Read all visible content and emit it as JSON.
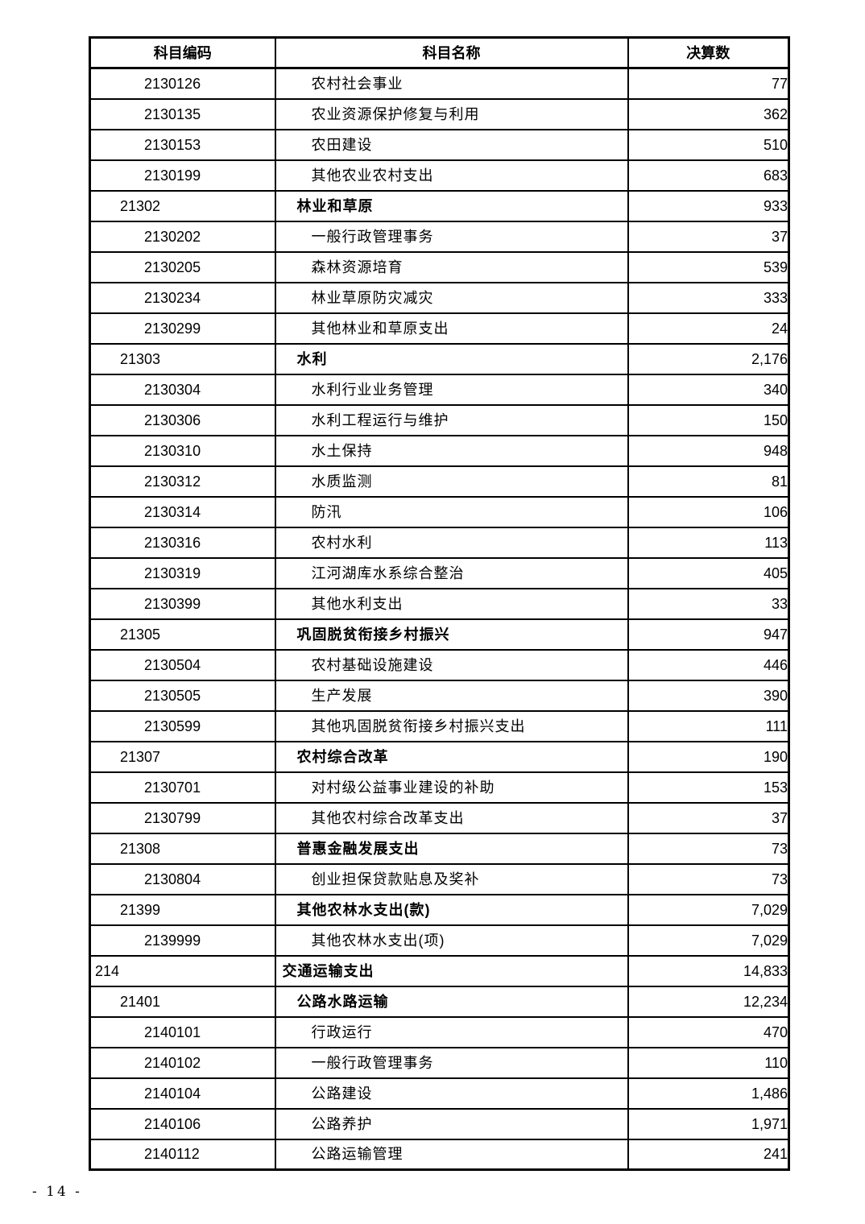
{
  "page": {
    "footer": "- 14 -"
  },
  "table": {
    "columns": [
      "科目编码",
      "科目名称",
      "决算数"
    ],
    "rows": [
      {
        "code": "2130126",
        "name": "农村社会事业",
        "value": "77",
        "level": 3
      },
      {
        "code": "2130135",
        "name": "农业资源保护修复与利用",
        "value": "362",
        "level": 3
      },
      {
        "code": "2130153",
        "name": "农田建设",
        "value": "510",
        "level": 3
      },
      {
        "code": "2130199",
        "name": "其他农业农村支出",
        "value": "683",
        "level": 3
      },
      {
        "code": "21302",
        "name": "林业和草原",
        "value": "933",
        "level": 2
      },
      {
        "code": "2130202",
        "name": "一般行政管理事务",
        "value": "37",
        "level": 3
      },
      {
        "code": "2130205",
        "name": "森林资源培育",
        "value": "539",
        "level": 3
      },
      {
        "code": "2130234",
        "name": "林业草原防灾减灾",
        "value": "333",
        "level": 3
      },
      {
        "code": "2130299",
        "name": "其他林业和草原支出",
        "value": "24",
        "level": 3
      },
      {
        "code": "21303",
        "name": "水利",
        "value": "2,176",
        "level": 2
      },
      {
        "code": "2130304",
        "name": "水利行业业务管理",
        "value": "340",
        "level": 3
      },
      {
        "code": "2130306",
        "name": "水利工程运行与维护",
        "value": "150",
        "level": 3
      },
      {
        "code": "2130310",
        "name": "水土保持",
        "value": "948",
        "level": 3
      },
      {
        "code": "2130312",
        "name": "水质监测",
        "value": "81",
        "level": 3
      },
      {
        "code": "2130314",
        "name": "防汛",
        "value": "106",
        "level": 3
      },
      {
        "code": "2130316",
        "name": "农村水利",
        "value": "113",
        "level": 3
      },
      {
        "code": "2130319",
        "name": "江河湖库水系综合整治",
        "value": "405",
        "level": 3
      },
      {
        "code": "2130399",
        "name": "其他水利支出",
        "value": "33",
        "level": 3
      },
      {
        "code": "21305",
        "name": "巩固脱贫衔接乡村振兴",
        "value": "947",
        "level": 2
      },
      {
        "code": "2130504",
        "name": "农村基础设施建设",
        "value": "446",
        "level": 3
      },
      {
        "code": "2130505",
        "name": "生产发展",
        "value": "390",
        "level": 3
      },
      {
        "code": "2130599",
        "name": "其他巩固脱贫衔接乡村振兴支出",
        "value": "111",
        "level": 3
      },
      {
        "code": "21307",
        "name": "农村综合改革",
        "value": "190",
        "level": 2
      },
      {
        "code": "2130701",
        "name": "对村级公益事业建设的补助",
        "value": "153",
        "level": 3
      },
      {
        "code": "2130799",
        "name": "其他农村综合改革支出",
        "value": "37",
        "level": 3
      },
      {
        "code": "21308",
        "name": "普惠金融发展支出",
        "value": "73",
        "level": 2
      },
      {
        "code": "2130804",
        "name": "创业担保贷款贴息及奖补",
        "value": "73",
        "level": 3
      },
      {
        "code": "21399",
        "name": "其他农林水支出(款)",
        "value": "7,029",
        "level": 2
      },
      {
        "code": "2139999",
        "name": "其他农林水支出(项)",
        "value": "7,029",
        "level": 3
      },
      {
        "code": "214",
        "name": "交通运输支出",
        "value": "14,833",
        "level": 1
      },
      {
        "code": "21401",
        "name": "公路水路运输",
        "value": "12,234",
        "level": 2
      },
      {
        "code": "2140101",
        "name": "行政运行",
        "value": "470",
        "level": 3
      },
      {
        "code": "2140102",
        "name": "一般行政管理事务",
        "value": "110",
        "level": 3
      },
      {
        "code": "2140104",
        "name": "公路建设",
        "value": "1,486",
        "level": 3
      },
      {
        "code": "2140106",
        "name": "公路养护",
        "value": "1,971",
        "level": 3
      },
      {
        "code": "2140112",
        "name": "公路运输管理",
        "value": "241",
        "level": 3
      }
    ]
  }
}
